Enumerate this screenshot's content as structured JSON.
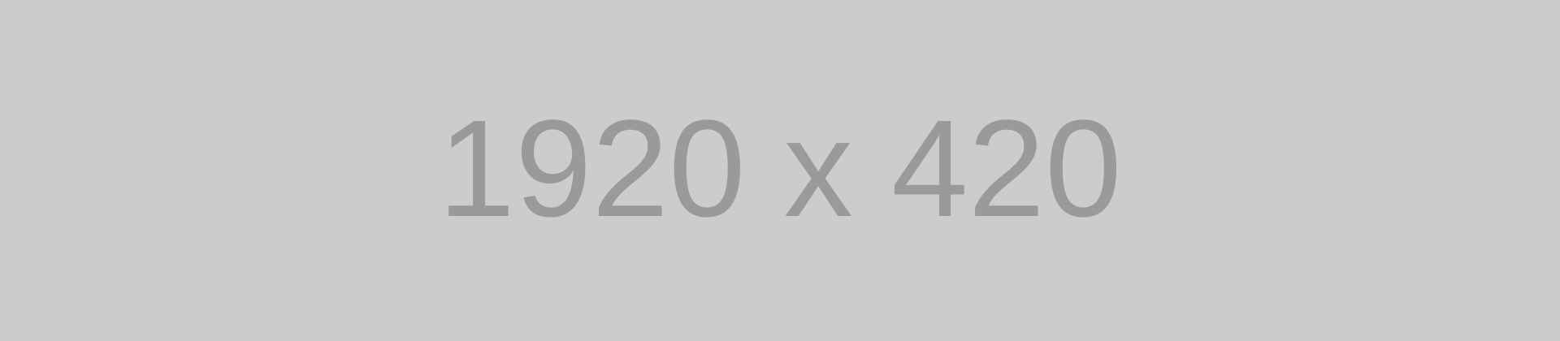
{
  "placeholder": {
    "label": "1920 x 420",
    "background_color": "#cccccc",
    "text_color": "#9a9a9a"
  }
}
